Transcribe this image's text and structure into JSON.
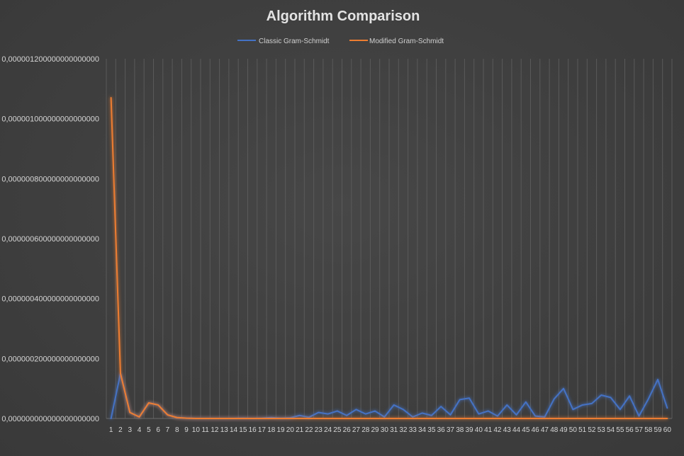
{
  "chart_data": {
    "type": "line",
    "title": "Algorithm Comparison",
    "xlabel": "",
    "ylabel": "",
    "ylim": [
      0,
      1.2e-06
    ],
    "y_ticks": [
      "0,000000000000000000000",
      "0,000000200000000000000",
      "0,000000400000000000000",
      "0,000000600000000000000",
      "0,000000800000000000000",
      "0,000001000000000000000",
      "0,000001200000000000000"
    ],
    "grid": "vertical",
    "legend_position": "top",
    "categories": [
      "1",
      "2",
      "3",
      "4",
      "5",
      "6",
      "7",
      "8",
      "9",
      "10",
      "11",
      "12",
      "13",
      "14",
      "15",
      "16",
      "17",
      "18",
      "19",
      "20",
      "21",
      "22",
      "23",
      "24",
      "25",
      "26",
      "27",
      "28",
      "29",
      "30",
      "31",
      "32",
      "33",
      "34",
      "35",
      "36",
      "37",
      "38",
      "39",
      "40",
      "41",
      "42",
      "43",
      "44",
      "45",
      "46",
      "47",
      "48",
      "49",
      "50",
      "51",
      "52",
      "53",
      "54",
      "55",
      "56",
      "57",
      "58",
      "59",
      "60"
    ],
    "series": [
      {
        "name": "Classic Gram-Schmidt",
        "color": "#4472c4",
        "values": [
          0,
          1.5e-07,
          2e-08,
          5e-09,
          5.2e-08,
          4.5e-08,
          1.2e-08,
          3e-09,
          1e-09,
          0,
          0,
          0,
          0,
          0,
          1e-09,
          0,
          1e-09,
          3e-09,
          1e-09,
          2e-09,
          1e-08,
          4e-09,
          2e-08,
          1.5e-08,
          2.5e-08,
          1e-08,
          3e-08,
          1.5e-08,
          2.5e-08,
          5e-09,
          4.5e-08,
          3e-08,
          5e-09,
          1.8e-08,
          1e-08,
          4e-08,
          1.2e-08,
          6.3e-08,
          6.8e-08,
          1.5e-08,
          2.5e-08,
          8e-09,
          4.5e-08,
          1.2e-08,
          5.5e-08,
          8e-09,
          5e-09,
          6.5e-08,
          1e-07,
          3e-08,
          4.5e-08,
          5e-08,
          7.8e-08,
          7e-08,
          3e-08,
          7.5e-08,
          8e-09,
          6.5e-08,
          1.3e-07,
          3.5e-08
        ]
      },
      {
        "name": "Modified Gram-Schmidt",
        "color": "#ed7d31",
        "values": [
          1.07e-06,
          1.5e-07,
          2e-08,
          5e-09,
          5.2e-08,
          4.5e-08,
          1.2e-08,
          3e-09,
          1e-09,
          0,
          0,
          0,
          0,
          0,
          0,
          0,
          0,
          0,
          0,
          0,
          0,
          0,
          0,
          0,
          0,
          0,
          0,
          0,
          0,
          0,
          0,
          0,
          0,
          0,
          0,
          0,
          0,
          0,
          0,
          0,
          0,
          0,
          0,
          0,
          0,
          0,
          0,
          0,
          0,
          0,
          0,
          0,
          0,
          0,
          0,
          0,
          0,
          0,
          0,
          0
        ]
      }
    ]
  }
}
